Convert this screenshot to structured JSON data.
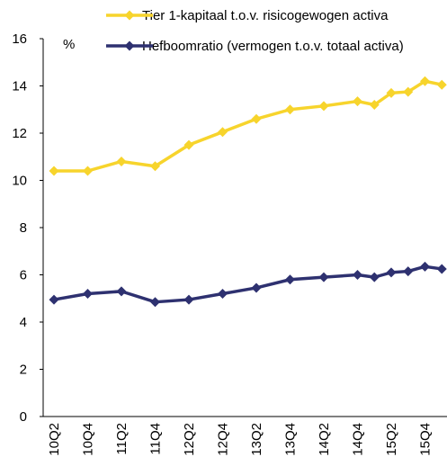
{
  "chart_data": {
    "type": "line",
    "unit_label": "%",
    "categories": [
      "10Q2",
      null,
      "10Q4",
      null,
      "11Q2",
      null,
      "11Q4",
      null,
      "12Q2",
      null,
      "12Q4",
      null,
      "13Q2",
      null,
      "13Q4",
      null,
      "14Q2",
      null,
      "14Q4",
      null,
      "15Q2",
      null,
      "15Q4",
      null
    ],
    "series": [
      {
        "name": "Tier 1-kapitaal t.o.v. risicogewogen activa",
        "color": "#f7d42c",
        "values": [
          10.4,
          null,
          10.4,
          null,
          10.8,
          null,
          10.6,
          null,
          11.5,
          null,
          12.05,
          null,
          12.6,
          null,
          13.0,
          null,
          13.15,
          null,
          13.35,
          13.2,
          13.7,
          13.75,
          14.2,
          14.05
        ]
      },
      {
        "name": "Hefboomratio (vermogen t.o.v. totaal activa)",
        "color": "#2e3170",
        "values": [
          4.95,
          null,
          5.2,
          null,
          5.3,
          null,
          4.85,
          null,
          4.95,
          null,
          5.2,
          null,
          5.45,
          null,
          5.8,
          null,
          5.9,
          null,
          6.0,
          5.9,
          6.1,
          6.15,
          6.35,
          6.25
        ]
      }
    ],
    "ylim": [
      0,
      16
    ],
    "yticks": [
      0,
      2,
      4,
      6,
      8,
      10,
      12,
      14,
      16
    ],
    "grid": false
  }
}
